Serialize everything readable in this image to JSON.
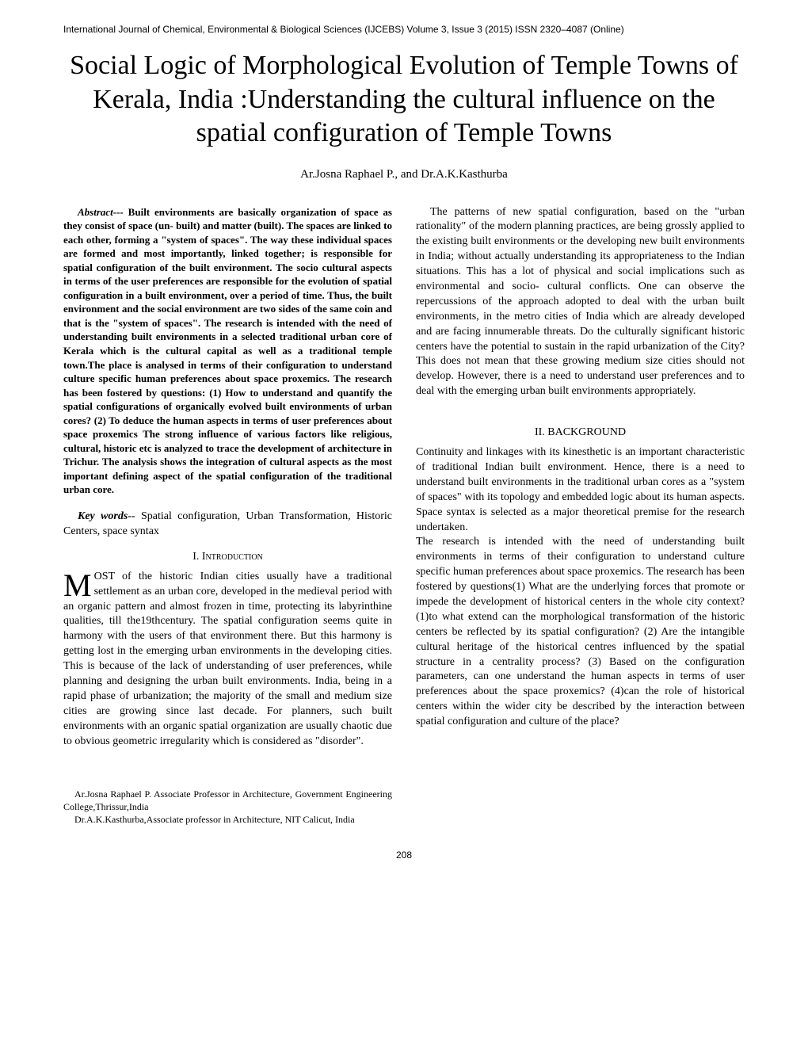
{
  "journal_header": "International Journal of Chemical, Environmental & Biological Sciences (IJCEBS) Volume 3, Issue 3 (2015) ISSN 2320–4087 (Online)",
  "title": "Social Logic of Morphological Evolution of Temple Towns of Kerala, India :Understanding the cultural influence on the spatial configuration of Temple Towns",
  "authors": "Ar.Josna Raphael P., and Dr.A.K.Kasthurba",
  "abstract_label": "Abstract---",
  "abstract_text": " Built environments are basically organization of space as they consist of space (un- built) and matter (built). The spaces are linked to each other, forming a \"system of spaces\". The way these individual spaces are formed and  most  importantly, linked together; is responsible for spatial configuration of the built environment. The socio cultural aspects in terms of the user preferences are responsible for the evolution of spatial configuration in a built environment, over a period of time. Thus, the built environment and the social environment are two sides of the same coin and that is the \"system of spaces\".  The research is intended with the need of understanding built environments in a selected traditional urban core of Kerala which is the cultural capital as well as a traditional temple town.The place is analysed in terms of their configuration to understand culture specific human preferences about space proxemics. The research has been fostered by questions: (1) How to understand and quantify the spatial configurations of organically evolved built environments of urban cores? (2) To deduce the human aspects in terms of user preferences about space proxemics The strong influence of various factors like religious, cultural, historic etc is analyzed to trace the development of architecture in Trichur. The analysis shows the integration of cultural aspects as the most important defining aspect of the spatial configuration of the traditional urban core.",
  "keywords_label": "Key words--",
  "keywords_text": " Spatial configuration, Urban Transformation, Historic Centers,  space syntax",
  "section1_heading": "I.  Introduction",
  "dropcap_letter": "M",
  "intro_text": "OST of the historic Indian cities usually have a traditional settlement as an urban core, developed in the medieval period with an organic pattern and almost frozen in time, protecting its labyrinthine qualities, till the19thcentury. The spatial configuration seems quite in harmony with the users of that environment there. But this harmony is getting lost in the emerging urban environments in the developing cities. This is because of the lack of understanding of user preferences, while planning and designing the urban built environments.   India, being in a rapid phase of urbanization; the majority of the small and medium size cities are growing since last decade. For planners,  such built environments with  an organic spatial organization are usually chaotic due to obvious geometric irregularity which is considered as \"disorder\".",
  "right_col_intro": "The patterns of new spatial configuration, based on the \"urban rationality\" of the modern planning practices, are being grossly applied to the existing built environments or the developing new built environments in India; without actually understanding its appropriateness to the Indian situations. This has a lot of physical and social implications such as environmental and socio- cultural conflicts.  One can observe the repercussions of the approach adopted to deal with the urban built environments, in the metro cities of India which are already developed and are facing innumerable threats. Do the culturally significant historic centers have the potential to sustain in the rapid urbanization of the City? This does not mean that these growing medium size cities should not develop. However, there is a need to understand user preferences and to deal with the emerging urban built environments appropriately.",
  "section2_heading": "II. BACKGROUND",
  "background_p1": "Continuity and linkages with its kinesthetic is an important characteristic of traditional Indian built environment. Hence, there is a need to understand built environments in the traditional urban cores as a \"system of spaces\" with its topology and embedded logic about its human aspects. Space syntax is selected as a major theoretical premise for the research undertaken.",
  "background_p2": "The research is intended with the need of understanding built environments in terms of their configuration to understand culture specific human preferences about space proxemics. The research has been fostered by questions(1) What are the underlying forces that promote or impede the development of historical centers in the whole city context?(1)to what extend can the morphological transformation of the historic centers be reflected by its spatial configuration? (2) Are the intangible cultural heritage of the historical centres influenced by the spatial structure in a centrality process? (3) Based on the configuration parameters, can one understand the human aspects in terms of user preferences about the space proxemics? (4)can the role of historical  centers within the wider city be described by the interaction between spatial configuration and culture of the place?",
  "footnote1": "Ar.Josna Raphael P. Associate Professor in Architecture, Government Engineering College,Thrissur,India",
  "footnote2": "Dr.A.K.Kasthurba,Associate professor in Architecture, NIT Calicut, India",
  "page_number": "208"
}
